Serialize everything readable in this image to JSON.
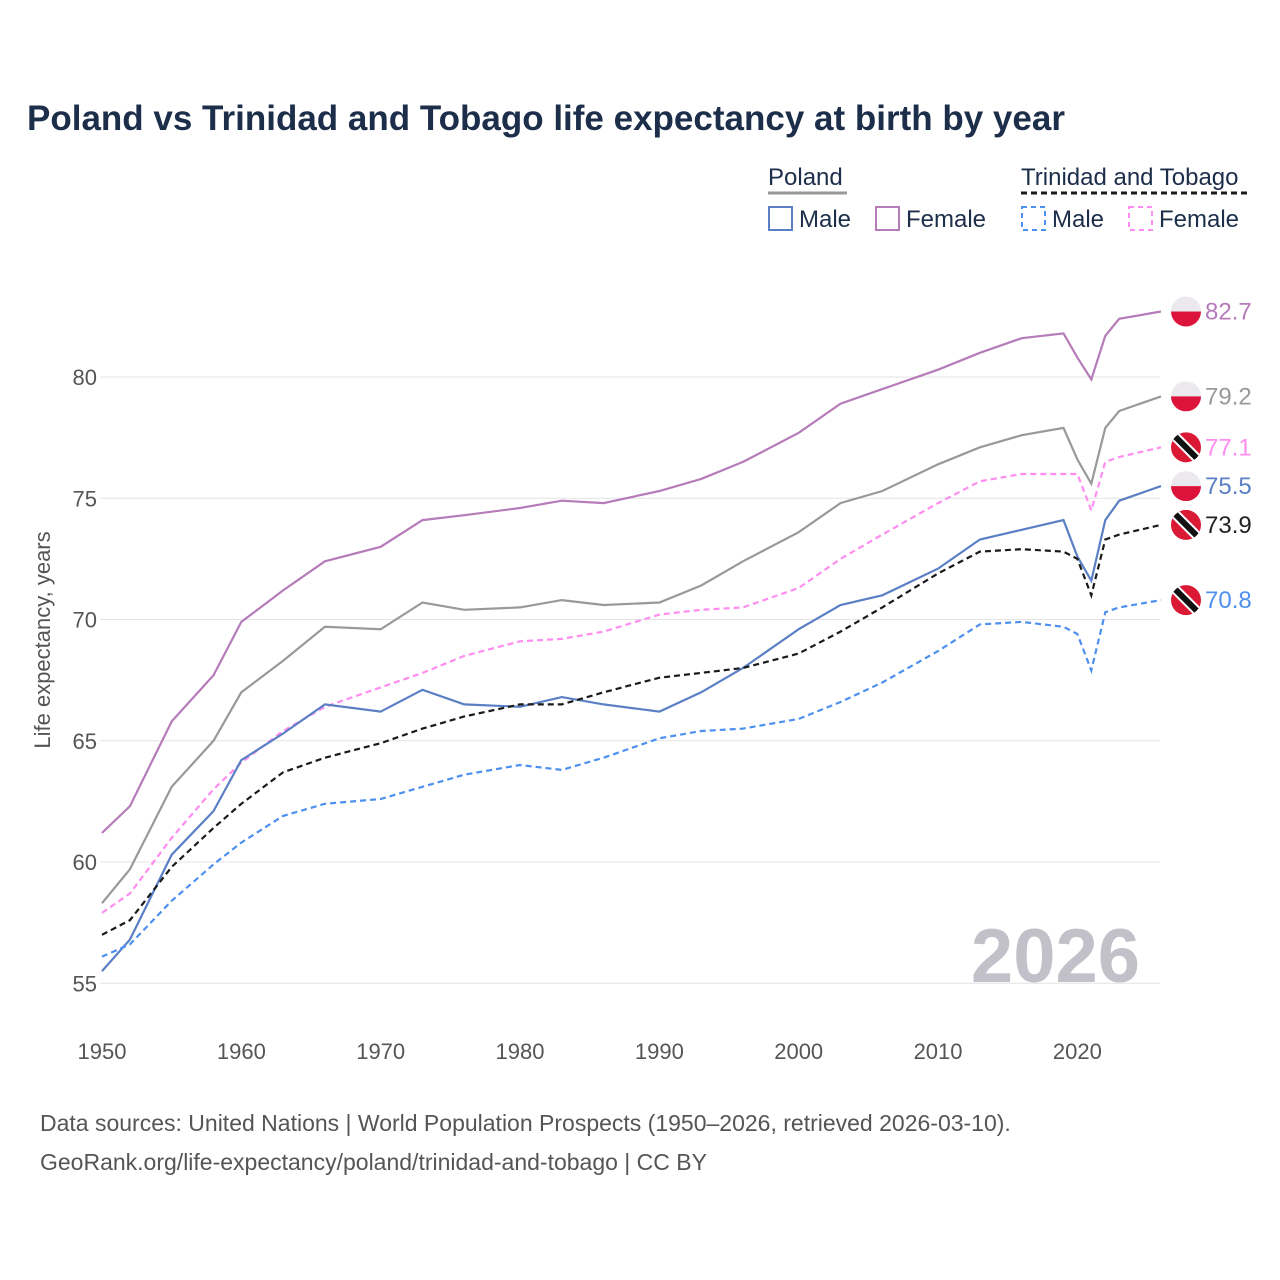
{
  "chart_data": {
    "type": "line",
    "title": "Poland vs Trinidad and Tobago life expectancy at birth by year",
    "xlabel": "",
    "ylabel": "Life expectancy, years",
    "xlim": [
      1950,
      2026
    ],
    "ylim": [
      54,
      84
    ],
    "x_ticks": [
      1950,
      1960,
      1970,
      1980,
      1990,
      2000,
      2010,
      2020
    ],
    "y_ticks": [
      55,
      60,
      65,
      70,
      75,
      80
    ],
    "grid": true,
    "watermark_year": "2026",
    "legend": {
      "placement": "top-right",
      "groups": [
        {
          "name": "Poland",
          "items": [
            "Male",
            "Female"
          ]
        },
        {
          "name": "Trinidad and Tobago",
          "items": [
            "Male",
            "Female"
          ]
        }
      ]
    },
    "x": [
      1950,
      1952,
      1955,
      1958,
      1960,
      1963,
      1966,
      1970,
      1973,
      1976,
      1980,
      1983,
      1986,
      1990,
      1993,
      1996,
      2000,
      2003,
      2006,
      2010,
      2013,
      2016,
      2019,
      2020,
      2021,
      2022,
      2023,
      2026
    ],
    "series": [
      {
        "name": "Poland Female",
        "country": "Poland",
        "color": "#b67bb9",
        "dashed": false,
        "end_label": "82.7",
        "values": [
          61.2,
          62.3,
          65.8,
          67.7,
          69.9,
          71.2,
          72.4,
          73.0,
          74.1,
          74.3,
          74.6,
          74.9,
          74.8,
          75.3,
          75.8,
          76.5,
          77.7,
          78.9,
          79.5,
          80.3,
          81.0,
          81.6,
          81.8,
          80.8,
          79.9,
          81.7,
          82.4,
          82.7
        ]
      },
      {
        "name": "Poland Total",
        "country": "Poland",
        "color": "#999999",
        "dashed": false,
        "end_label": "79.2",
        "values": [
          58.3,
          59.7,
          63.1,
          65.0,
          67.0,
          68.3,
          69.7,
          69.6,
          70.7,
          70.4,
          70.5,
          70.8,
          70.6,
          70.7,
          71.4,
          72.4,
          73.6,
          74.8,
          75.3,
          76.4,
          77.1,
          77.6,
          77.9,
          76.6,
          75.6,
          77.9,
          78.6,
          79.2
        ]
      },
      {
        "name": "Trinidad and Tobago Female",
        "country": "Trinidad and Tobago",
        "color": "#ff8cf0",
        "dashed": true,
        "end_label": "77.1",
        "values": [
          57.9,
          58.7,
          61.0,
          63.0,
          64.1,
          65.4,
          66.4,
          67.2,
          67.8,
          68.5,
          69.1,
          69.2,
          69.5,
          70.2,
          70.4,
          70.5,
          71.3,
          72.5,
          73.5,
          74.8,
          75.7,
          76.0,
          76.0,
          76.0,
          74.5,
          76.5,
          76.7,
          77.1
        ]
      },
      {
        "name": "Poland Male",
        "country": "Poland",
        "color": "#5a7fc4",
        "dashed": false,
        "end_label": "75.5",
        "values": [
          55.5,
          56.8,
          60.3,
          62.1,
          64.2,
          65.3,
          66.5,
          66.2,
          67.1,
          66.5,
          66.4,
          66.8,
          66.5,
          66.2,
          67.0,
          68.0,
          69.6,
          70.6,
          71.0,
          72.1,
          73.3,
          73.7,
          74.1,
          72.6,
          71.6,
          74.1,
          74.9,
          75.5
        ]
      },
      {
        "name": "Trinidad and Tobago Total",
        "country": "Trinidad and Tobago",
        "color": "#1a1a1a",
        "dashed": true,
        "end_label": "73.9",
        "values": [
          57.0,
          57.6,
          59.8,
          61.4,
          62.4,
          63.7,
          64.3,
          64.9,
          65.5,
          66.0,
          66.5,
          66.5,
          67.0,
          67.6,
          67.8,
          68.0,
          68.6,
          69.5,
          70.5,
          71.9,
          72.8,
          72.9,
          72.8,
          72.5,
          71.0,
          73.3,
          73.5,
          73.9
        ]
      },
      {
        "name": "Trinidad and Tobago Male",
        "country": "Trinidad and Tobago",
        "color": "#4d90f0",
        "dashed": true,
        "end_label": "70.8",
        "values": [
          56.1,
          56.6,
          58.4,
          59.9,
          60.8,
          61.9,
          62.4,
          62.6,
          63.1,
          63.6,
          64.0,
          63.8,
          64.3,
          65.1,
          65.4,
          65.5,
          65.9,
          66.6,
          67.4,
          68.7,
          69.8,
          69.9,
          69.7,
          69.4,
          67.9,
          70.3,
          70.5,
          70.8
        ]
      }
    ]
  },
  "source_line1": "Data sources: United Nations | World Population Prospects (1950–2026, retrieved 2026-03-10).",
  "source_line2": "GeoRank.org/life-expectancy/poland/trinidad-and-tobago | CC BY"
}
